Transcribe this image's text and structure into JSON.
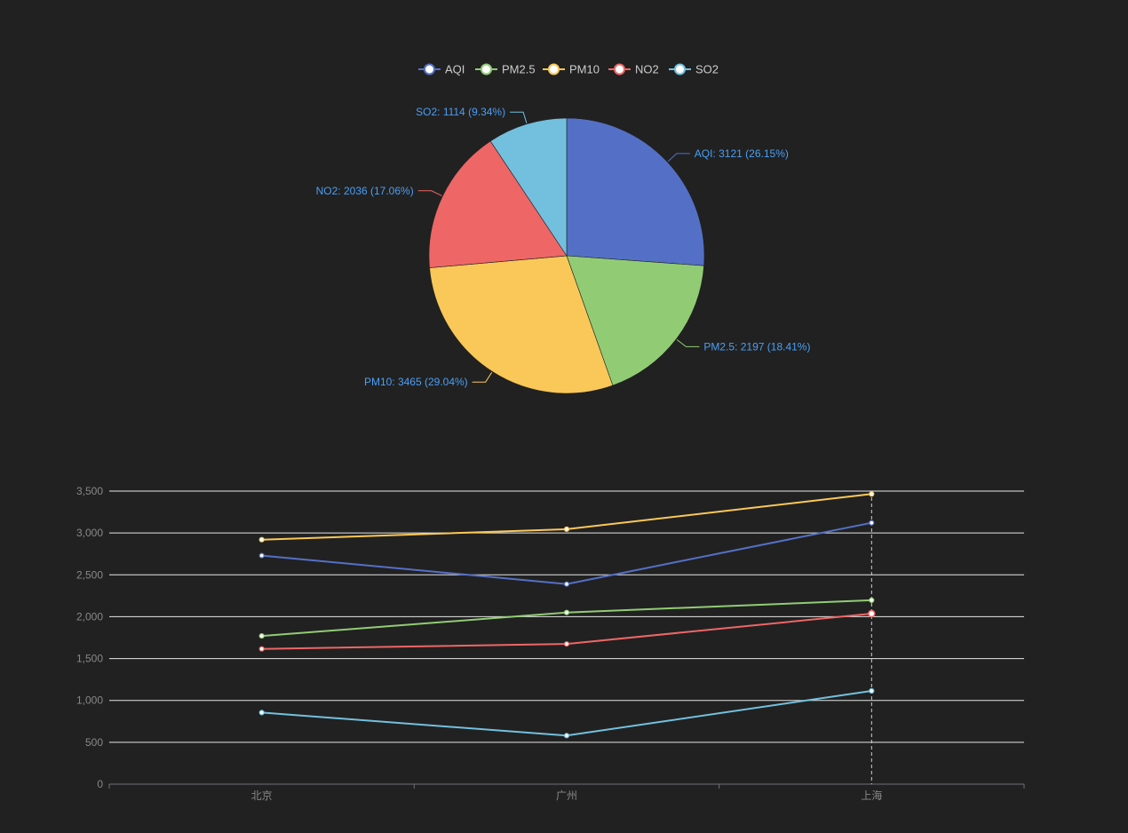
{
  "colors": [
    "#5470c6",
    "#91cc75",
    "#fac858",
    "#ee6666",
    "#73c0de"
  ],
  "chart_data": [
    {
      "type": "pie",
      "legend": {
        "position": "top-center",
        "items": [
          "AQI",
          "PM2.5",
          "PM10",
          "NO2",
          "SO2"
        ]
      },
      "slices": [
        {
          "name": "AQI",
          "value": 3121,
          "percent": "26.15%",
          "label": "AQI: 3121 (26.15%)"
        },
        {
          "name": "PM2.5",
          "value": 2197,
          "percent": "18.41%",
          "label": "PM2.5: 2197 (18.41%)"
        },
        {
          "name": "PM10",
          "value": 3465,
          "percent": "29.04%",
          "label": "PM10: 3465 (29.04%)"
        },
        {
          "name": "NO2",
          "value": 2036,
          "percent": "17.06%",
          "label": "NO2: 2036 (17.06%)"
        },
        {
          "name": "SO2",
          "value": 1114,
          "percent": "9.34%",
          "label": "SO2: 1114 (9.34%)"
        }
      ]
    },
    {
      "type": "line",
      "categories": [
        "北京",
        "广州",
        "上海"
      ],
      "ylim": [
        0,
        3500
      ],
      "yticks": [
        0,
        500,
        1000,
        1500,
        2000,
        2500,
        3000,
        3500
      ],
      "ytick_labels": [
        "0",
        "500",
        "1,000",
        "1,500",
        "2,000",
        "2,500",
        "3,000",
        "3,500"
      ],
      "grid": true,
      "highlighted_category": "上海",
      "series": [
        {
          "name": "AQI",
          "values": [
            2730,
            2390,
            3121
          ]
        },
        {
          "name": "PM2.5",
          "values": [
            1770,
            2050,
            2197
          ]
        },
        {
          "name": "PM10",
          "values": [
            2920,
            3045,
            3465
          ]
        },
        {
          "name": "NO2",
          "values": [
            1615,
            1675,
            2036
          ]
        },
        {
          "name": "SO2",
          "values": [
            855,
            580,
            1114
          ]
        }
      ]
    }
  ]
}
